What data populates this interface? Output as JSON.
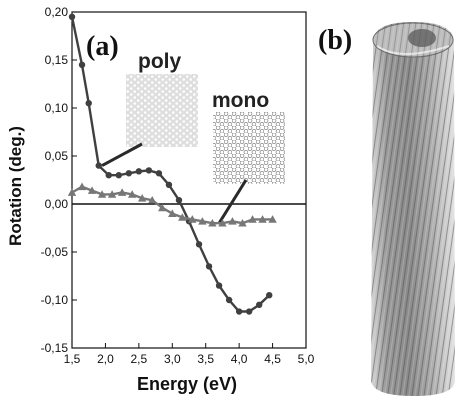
{
  "chart_data": {
    "type": "line",
    "panel_label": "(a)",
    "xlabel": "Energy (eV)",
    "ylabel": "Rotation (deg.)",
    "xlim": [
      1.5,
      5.0
    ],
    "ylim": [
      -0.15,
      0.2
    ],
    "x_ticks": [
      "1,5",
      "2,0",
      "2,5",
      "3,0",
      "3,5",
      "4,0",
      "4,5",
      "5,0"
    ],
    "y_ticks": [
      "0,20",
      "0,15",
      "0,10",
      "0,05",
      "0,00",
      "-0,05",
      "-0,10",
      "-0,15"
    ],
    "zero_line": true,
    "grid": false,
    "series": [
      {
        "name": "poly",
        "marker": "circle",
        "color": "#404040",
        "x": [
          1.5,
          1.65,
          1.75,
          1.9,
          2.05,
          2.2,
          2.35,
          2.5,
          2.65,
          2.8,
          2.95,
          3.1,
          3.25,
          3.4,
          3.55,
          3.7,
          3.85,
          4.0,
          4.15,
          4.3,
          4.45
        ],
        "y": [
          0.195,
          0.145,
          0.105,
          0.04,
          0.03,
          0.03,
          0.032,
          0.034,
          0.035,
          0.032,
          0.02,
          0.004,
          -0.018,
          -0.042,
          -0.065,
          -0.085,
          -0.1,
          -0.112,
          -0.112,
          -0.105,
          -0.095
        ]
      },
      {
        "name": "mono",
        "marker": "triangle",
        "color": "#777777",
        "x": [
          1.5,
          1.65,
          1.8,
          1.95,
          2.1,
          2.25,
          2.4,
          2.55,
          2.7,
          2.85,
          3.0,
          3.15,
          3.3,
          3.45,
          3.6,
          3.75,
          3.9,
          4.05,
          4.2,
          4.35,
          4.5
        ],
        "y": [
          0.012,
          0.018,
          0.014,
          0.01,
          0.01,
          0.012,
          0.01,
          0.006,
          0.004,
          -0.004,
          -0.01,
          -0.014,
          -0.016,
          -0.018,
          -0.02,
          -0.02,
          -0.018,
          -0.02,
          -0.016,
          -0.016,
          -0.016
        ]
      }
    ],
    "insets": [
      {
        "label": "poly",
        "pointer_to": [
          1.95,
          0.04
        ]
      },
      {
        "label": "mono",
        "pointer_to": [
          3.7,
          -0.02
        ]
      }
    ],
    "right_panel_label": "(b)"
  }
}
